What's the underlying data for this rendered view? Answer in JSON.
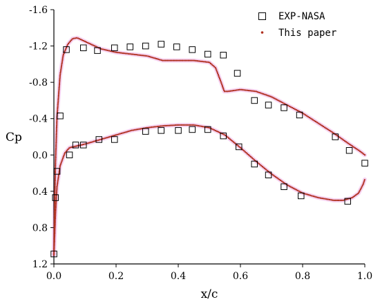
{
  "chart_data": {
    "type": "scatter",
    "xlabel": "x/c",
    "ylabel": "Cp",
    "xlim": [
      0.0,
      1.0
    ],
    "ylim": [
      1.2,
      -1.6
    ],
    "y_inverted": true,
    "xticks": [
      "0.0",
      "0.2",
      "0.4",
      "0.6",
      "0.8",
      "1.0"
    ],
    "yticks": [
      "-1.6",
      "-1.2",
      "-0.8",
      "-0.4",
      "0.0",
      "0.4",
      "0.8",
      "1.2"
    ],
    "legend_position": "top-right",
    "colors": {
      "experiment": "#000000",
      "computed": "#b03020",
      "computed_glow": "#f3c4ec"
    },
    "series": [
      {
        "name": "EXP-NASA",
        "marker": "open-square",
        "points": [
          [
            0.0,
            1.09
          ],
          [
            0.005,
            0.47
          ],
          [
            0.01,
            0.18
          ],
          [
            0.02,
            -0.43
          ],
          [
            0.04,
            -1.16
          ],
          [
            0.05,
            0.0
          ],
          [
            0.07,
            -0.11
          ],
          [
            0.095,
            -1.18
          ],
          [
            0.095,
            -0.11
          ],
          [
            0.14,
            -1.15
          ],
          [
            0.145,
            -0.17
          ],
          [
            0.195,
            -1.18
          ],
          [
            0.195,
            -0.17
          ],
          [
            0.245,
            -1.19
          ],
          [
            0.295,
            -1.2
          ],
          [
            0.295,
            -0.26
          ],
          [
            0.345,
            -1.22
          ],
          [
            0.345,
            -0.27
          ],
          [
            0.395,
            -1.19
          ],
          [
            0.4,
            -0.27
          ],
          [
            0.445,
            -1.16
          ],
          [
            0.445,
            -0.28
          ],
          [
            0.495,
            -1.11
          ],
          [
            0.495,
            -0.28
          ],
          [
            0.545,
            -1.1
          ],
          [
            0.545,
            -0.21
          ],
          [
            0.59,
            -0.9
          ],
          [
            0.595,
            -0.09
          ],
          [
            0.645,
            -0.6
          ],
          [
            0.645,
            0.1
          ],
          [
            0.69,
            -0.55
          ],
          [
            0.69,
            0.22
          ],
          [
            0.74,
            -0.52
          ],
          [
            0.74,
            0.35
          ],
          [
            0.79,
            -0.44
          ],
          [
            0.795,
            0.45
          ],
          [
            0.905,
            -0.2
          ],
          [
            0.945,
            0.51
          ],
          [
            0.95,
            -0.05
          ],
          [
            1.0,
            0.09
          ]
        ]
      },
      {
        "name": "This paper",
        "marker": "dot",
        "upper": [
          [
            0.0,
            1.1
          ],
          [
            0.002,
            0.62
          ],
          [
            0.005,
            0.1
          ],
          [
            0.01,
            -0.42
          ],
          [
            0.02,
            -0.88
          ],
          [
            0.03,
            -1.1
          ],
          [
            0.045,
            -1.22
          ],
          [
            0.06,
            -1.28
          ],
          [
            0.075,
            -1.29
          ],
          [
            0.1,
            -1.25
          ],
          [
            0.15,
            -1.17
          ],
          [
            0.2,
            -1.13
          ],
          [
            0.25,
            -1.11
          ],
          [
            0.3,
            -1.09
          ],
          [
            0.35,
            -1.04
          ],
          [
            0.4,
            -1.04
          ],
          [
            0.45,
            -1.04
          ],
          [
            0.5,
            -1.02
          ],
          [
            0.52,
            -0.96
          ],
          [
            0.54,
            -0.78
          ],
          [
            0.548,
            -0.7
          ],
          [
            0.56,
            -0.7
          ],
          [
            0.6,
            -0.72
          ],
          [
            0.65,
            -0.7
          ],
          [
            0.7,
            -0.64
          ],
          [
            0.75,
            -0.55
          ],
          [
            0.8,
            -0.46
          ],
          [
            0.85,
            -0.35
          ],
          [
            0.9,
            -0.24
          ],
          [
            0.95,
            -0.12
          ],
          [
            0.985,
            -0.04
          ],
          [
            1.0,
            0.0
          ]
        ],
        "lower": [
          [
            0.0,
            1.1
          ],
          [
            0.005,
            0.65
          ],
          [
            0.01,
            0.35
          ],
          [
            0.02,
            0.12
          ],
          [
            0.035,
            -0.02
          ],
          [
            0.05,
            -0.08
          ],
          [
            0.075,
            -0.1
          ],
          [
            0.1,
            -0.12
          ],
          [
            0.15,
            -0.17
          ],
          [
            0.2,
            -0.22
          ],
          [
            0.25,
            -0.27
          ],
          [
            0.3,
            -0.3
          ],
          [
            0.35,
            -0.32
          ],
          [
            0.4,
            -0.33
          ],
          [
            0.45,
            -0.33
          ],
          [
            0.5,
            -0.3
          ],
          [
            0.55,
            -0.22
          ],
          [
            0.6,
            -0.08
          ],
          [
            0.65,
            0.07
          ],
          [
            0.7,
            0.21
          ],
          [
            0.75,
            0.33
          ],
          [
            0.8,
            0.42
          ],
          [
            0.85,
            0.47
          ],
          [
            0.9,
            0.5
          ],
          [
            0.93,
            0.5
          ],
          [
            0.96,
            0.47
          ],
          [
            0.98,
            0.42
          ],
          [
            0.995,
            0.32
          ],
          [
            1.0,
            0.27
          ]
        ]
      }
    ]
  }
}
